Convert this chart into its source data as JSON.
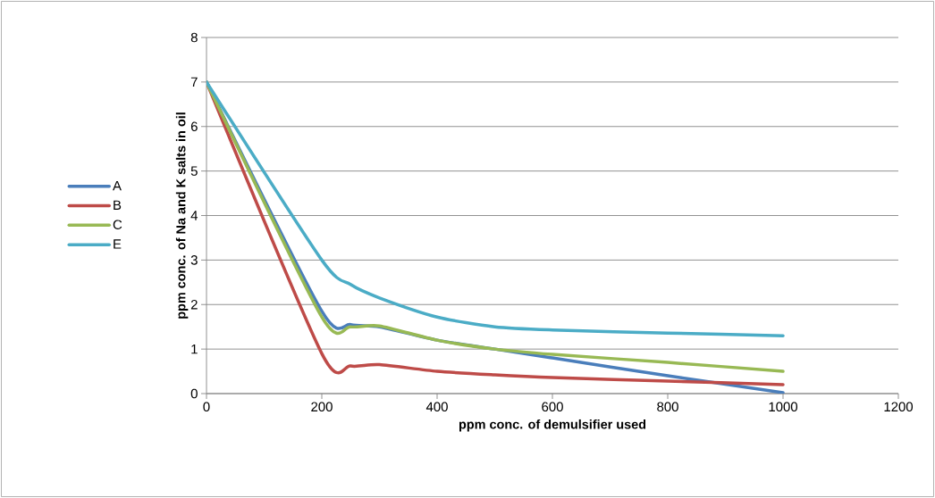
{
  "chart_data": {
    "type": "line",
    "xlabel": "ppm conc. of demulsifier used",
    "ylabel": "ppm conc. of Na and K salts in oil",
    "x": [
      0,
      200,
      250,
      300,
      400,
      500,
      600,
      800,
      1000
    ],
    "series": [
      {
        "name": "A",
        "color": "#4a7ebb",
        "values": [
          7,
          1.85,
          1.55,
          1.5,
          1.2,
          1.0,
          0.8,
          0.4,
          0.02
        ]
      },
      {
        "name": "B",
        "color": "#be4b48",
        "values": [
          7,
          0.9,
          0.62,
          0.65,
          0.5,
          0.42,
          0.36,
          0.28,
          0.2
        ]
      },
      {
        "name": "C",
        "color": "#98b954",
        "values": [
          7,
          1.72,
          1.5,
          1.52,
          1.2,
          1.0,
          0.88,
          0.7,
          0.5
        ]
      },
      {
        "name": "E",
        "color": "#4bacc6",
        "values": [
          7,
          3.0,
          2.45,
          2.15,
          1.72,
          1.5,
          1.43,
          1.36,
          1.3
        ]
      }
    ],
    "xlim": [
      0,
      1200
    ],
    "xticks": [
      0,
      200,
      400,
      600,
      800,
      1000,
      1200
    ],
    "ylim": [
      0,
      8
    ],
    "yticks": [
      0,
      1,
      2,
      3,
      4,
      5,
      6,
      7,
      8
    ],
    "grid": "y",
    "legend": "left",
    "marker": "none",
    "line_style": "solid"
  }
}
